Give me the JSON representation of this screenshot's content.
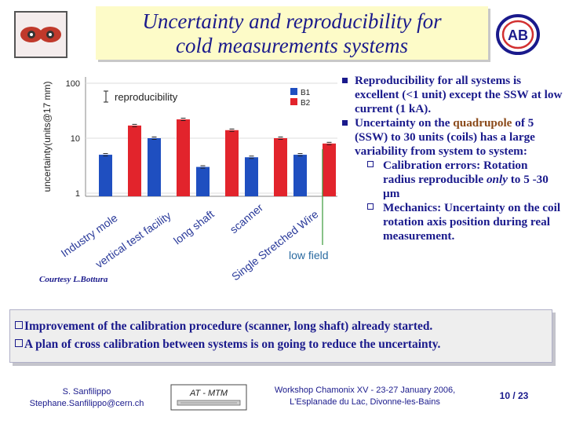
{
  "header": {
    "title_line1": "Uncertainty and reproducibility for",
    "title_line2": "cold measurements systems",
    "logo_right_text": "AB"
  },
  "chart_data": {
    "type": "bar",
    "categories": [
      "Industry mole",
      "vertical test facility",
      "long shaft",
      "scanner",
      "Single Stretched Wire"
    ],
    "series": [
      {
        "name": "B1",
        "color": "#1f4fc0",
        "values": [
          5,
          10,
          3,
          4.5,
          5
        ]
      },
      {
        "name": "B2",
        "color": "#e2242c",
        "values": [
          17,
          22,
          14,
          10,
          8
        ]
      }
    ],
    "ylabel": "uncertainty(units@17 mm)",
    "yscale": "log",
    "ylim": [
      1,
      100
    ],
    "ytick_labels": [
      "1",
      "10",
      "100"
    ],
    "legend_position": "top-right",
    "error_bar_label": "reproducibility",
    "annotation": "low field",
    "credit": "Courtesy L.Bottura"
  },
  "bullets": [
    {
      "text": "Reproducibility for all systems is excellent (<1 unit) except the SSW at low current (1 kA)."
    },
    {
      "text_a": "Uncertainty on the ",
      "text_b": "quadrupole",
      "text_c": " of 5 (SSW) to 30 units (coils) has a large variability from system to system:"
    }
  ],
  "sub_bullets": [
    {
      "text_a": "Calibration errors: Rotation radius reproducible ",
      "text_b": "only",
      "text_c": " to 5 -30 µm"
    },
    {
      "text": "Mechanics: Uncertainty on the coil rotation axis position during real measurement."
    }
  ],
  "info_box": {
    "line1": "Improvement of the calibration procedure (scanner, long shaft) already started.",
    "line2": "A plan of cross calibration between systems is on going to reduce the uncertainty."
  },
  "footer": {
    "author_name": "S. Sanfilippo",
    "author_email": "Stephane.Sanfilippo@cern.ch",
    "dept_label": "AT - MTM",
    "event_line1": "Workshop Chamonix XV - 23-27 January 2006,",
    "event_line2": "L'Esplanade du Lac, Divonne-les-Bains",
    "page": "10 / 23"
  }
}
